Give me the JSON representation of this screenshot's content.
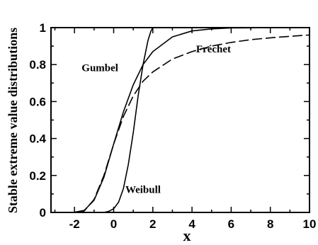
{
  "chart_data": {
    "type": "line",
    "xlabel": "x",
    "ylabel": "Stable extreme value distributions",
    "xlim": [
      -3.2,
      10
    ],
    "ylim": [
      0,
      1
    ],
    "x_ticks": [
      -2,
      0,
      2,
      4,
      6,
      8,
      10
    ],
    "y_ticks": [
      0,
      0.2,
      0.4,
      0.6,
      0.8,
      1
    ],
    "x_tick_labels": [
      "-2",
      "0",
      "2",
      "4",
      "6",
      "8",
      "10"
    ],
    "y_tick_labels": [
      "0",
      "0.2",
      "0.4",
      "0.6",
      "0.8",
      "1"
    ],
    "grid": false,
    "series": [
      {
        "name": "Gumbel",
        "style": "solid",
        "x": [
          -2.0,
          -1.5,
          -1.0,
          -0.5,
          0.0,
          0.5,
          1.0,
          1.5,
          2.0,
          3.0,
          4.0,
          5.0,
          6.0,
          7.0,
          8.0,
          10.0
        ],
        "y": [
          0.001,
          0.011,
          0.066,
          0.19,
          0.37,
          0.545,
          0.69,
          0.8,
          0.87,
          0.95,
          0.982,
          0.993,
          0.998,
          0.999,
          1.0,
          1.0
        ]
      },
      {
        "name": "Fréchet",
        "style": "dashed",
        "x": [
          -1.8,
          -1.5,
          -1.0,
          -0.5,
          0.0,
          0.5,
          1.0,
          1.5,
          2.0,
          3.0,
          4.0,
          5.0,
          6.0,
          7.0,
          8.0,
          9.0,
          10.0
        ],
        "y": [
          0.0,
          0.008,
          0.07,
          0.2,
          0.37,
          0.52,
          0.63,
          0.71,
          0.76,
          0.83,
          0.87,
          0.9,
          0.92,
          0.935,
          0.945,
          0.953,
          0.96
        ]
      },
      {
        "name": "Weibull",
        "style": "solid",
        "x": [
          -0.5,
          -0.25,
          0.0,
          0.25,
          0.5,
          0.75,
          1.0,
          1.25,
          1.5,
          1.75,
          1.9,
          2.0,
          2.2
        ],
        "y": [
          0.0,
          0.006,
          0.02,
          0.055,
          0.13,
          0.26,
          0.43,
          0.63,
          0.8,
          0.93,
          0.98,
          1.0,
          1.0
        ]
      }
    ]
  }
}
